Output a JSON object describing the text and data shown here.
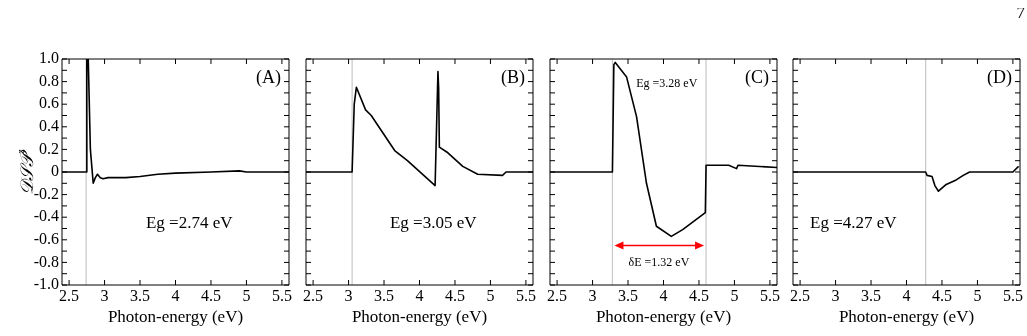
{
  "chart_data": [
    {
      "type": "line",
      "title": "(A)",
      "xlabel": "Photon-energy (eV)",
      "ylabel": "𝒟𝒮𝒫$^{z}$",
      "xlim": [
        2.4,
        5.6
      ],
      "ylim": [
        -1,
        1
      ],
      "xticks": [
        2.5,
        3,
        3.5,
        4,
        4.5,
        5,
        5.5
      ],
      "yticks": [
        {
          "value": -1,
          "label": "-1.0"
        },
        {
          "value": -0.9,
          "label": null
        },
        {
          "value": -0.8,
          "label": "-0.8"
        },
        {
          "value": -0.7,
          "label": null
        },
        {
          "value": -0.6,
          "label": "-0.6"
        },
        {
          "value": -0.5,
          "label": null
        },
        {
          "value": -0.4,
          "label": "-0.4"
        },
        {
          "value": -0.3,
          "label": null
        },
        {
          "value": -0.2,
          "label": "-0.2"
        },
        {
          "value": -0.1,
          "label": null
        },
        0,
        {
          "value": 0.1,
          "label": null
        },
        0.2,
        {
          "value": 0.3,
          "label": null
        },
        0.4,
        {
          "value": 0.5,
          "label": null
        },
        0.6,
        {
          "value": 0.7,
          "label": null
        },
        0.8,
        {
          "value": 0.9,
          "label": null
        },
        {
          "value": 1,
          "label": "1.0"
        }
      ],
      "grid": false,
      "legend": false,
      "marker": "none",
      "line_style": "solid",
      "x": [
        2.4,
        2.74,
        2.75,
        2.77,
        2.8,
        2.84,
        2.87,
        2.9,
        2.94,
        2.98,
        3.05,
        3.3,
        3.5,
        3.75,
        4.0,
        4.5,
        4.9,
        5.0,
        5.6
      ],
      "series": [
        {
          "color": "#000000",
          "values": [
            0,
            0,
            1.0,
            1.0,
            0.2,
            -0.1,
            -0.05,
            -0.02,
            -0.05,
            -0.06,
            -0.05,
            -0.05,
            -0.04,
            -0.02,
            -0.01,
            0,
            0.01,
            0,
            0
          ]
        }
      ],
      "ref_lines": [
        {
          "axis": "x",
          "value": 2.74,
          "color": "#c8c8c8"
        }
      ],
      "annotations": [
        "Eg =2.74 eV"
      ]
    },
    {
      "type": "line",
      "title": "(B)",
      "xlabel": "Photon-energy (eV)",
      "xlim": [
        2.4,
        5.6
      ],
      "ylim": [
        -1,
        1
      ],
      "xticks": [
        2.5,
        3,
        3.5,
        4,
        4.5,
        5,
        5.5
      ],
      "yticks": [
        -1,
        -0.9,
        -0.8,
        -0.7,
        -0.6,
        -0.5,
        -0.4,
        -0.3,
        -0.2,
        -0.1,
        0,
        0.1,
        0.2,
        0.3,
        0.4,
        0.5,
        0.6,
        0.7,
        0.8,
        0.9,
        1
      ],
      "tick_labels": "x",
      "grid": false,
      "legend": false,
      "marker": "none",
      "line_style": "solid",
      "x": [
        2.4,
        3.05,
        3.08,
        3.11,
        3.24,
        3.32,
        3.65,
        3.83,
        4.22,
        4.26,
        4.27,
        4.28,
        4.4,
        4.61,
        4.82,
        5.17,
        5.22,
        5.6
      ],
      "series": [
        {
          "color": "#000000",
          "values": [
            0,
            0,
            0.6,
            0.75,
            0.55,
            0.5,
            0.19,
            0.1,
            -0.12,
            0.89,
            0.74,
            0.22,
            0.17,
            0.05,
            -0.02,
            -0.03,
            0,
            0
          ]
        }
      ],
      "ref_lines": [
        {
          "axis": "x",
          "value": 3.05,
          "color": "#c8c8c8"
        }
      ],
      "annotations": [
        "Eg =3.05 eV"
      ]
    },
    {
      "type": "line",
      "title": "(C)",
      "xlabel": "Photon-energy (eV)",
      "xlim": [
        2.4,
        5.6
      ],
      "ylim": [
        -1,
        1
      ],
      "xticks": [
        2.5,
        3,
        3.5,
        4,
        4.5,
        5,
        5.5
      ],
      "yticks": [
        -1,
        -0.9,
        -0.8,
        -0.7,
        -0.6,
        -0.5,
        -0.4,
        -0.3,
        -0.2,
        -0.1,
        0,
        0.1,
        0.2,
        0.3,
        0.4,
        0.5,
        0.6,
        0.7,
        0.8,
        0.9,
        1
      ],
      "tick_labels": "x",
      "grid": false,
      "legend": false,
      "marker": "none",
      "line_style": "solid",
      "x": [
        2.4,
        3.28,
        3.3,
        3.32,
        3.48,
        3.62,
        3.76,
        3.9,
        4.11,
        4.27,
        4.59,
        4.6,
        4.69,
        4.92,
        5.03,
        5.05,
        5.6
      ],
      "series": [
        {
          "color": "#000000",
          "values": [
            0,
            0,
            0.95,
            0.97,
            0.84,
            0.49,
            -0.1,
            -0.48,
            -0.57,
            -0.51,
            -0.36,
            0.06,
            0.06,
            0.06,
            0.03,
            0.06,
            0.04
          ]
        }
      ],
      "ref_lines": [
        {
          "axis": "x",
          "value": 3.28,
          "color": "#c8c8c8"
        },
        {
          "axis": "x",
          "value": 4.6,
          "color": "#c8c8c8"
        }
      ],
      "annotations": [
        "Eg =3.28 eV",
        "δE =1.32 eV"
      ]
    },
    {
      "type": "line",
      "title": "(D)",
      "xlabel": "Photon-energy (eV)",
      "xlim": [
        2.4,
        5.6
      ],
      "ylim": [
        -1,
        1
      ],
      "xticks": [
        2.5,
        3,
        3.5,
        4,
        4.5,
        5,
        5.5
      ],
      "yticks": [
        -1,
        -0.9,
        -0.8,
        -0.7,
        -0.6,
        -0.5,
        -0.4,
        -0.3,
        -0.2,
        -0.1,
        0,
        0.1,
        0.2,
        0.3,
        0.4,
        0.5,
        0.6,
        0.7,
        0.8,
        0.9,
        1
      ],
      "tick_labels": "x",
      "grid": false,
      "legend": false,
      "marker": "none",
      "line_style": "solid",
      "x": [
        2.4,
        4.27,
        4.29,
        4.36,
        4.4,
        4.45,
        4.56,
        4.7,
        4.8,
        4.89,
        5.5,
        5.58
      ],
      "series": [
        {
          "color": "#000000",
          "values": [
            0,
            0,
            -0.03,
            -0.04,
            -0.12,
            -0.17,
            -0.11,
            -0.07,
            -0.03,
            0,
            0,
            0.05
          ]
        }
      ],
      "ref_lines": [
        {
          "axis": "x",
          "value": 4.27,
          "color": "#c8c8c8"
        }
      ],
      "annotations": [
        "Eg =4.27 eV",
        "7"
      ]
    }
  ]
}
